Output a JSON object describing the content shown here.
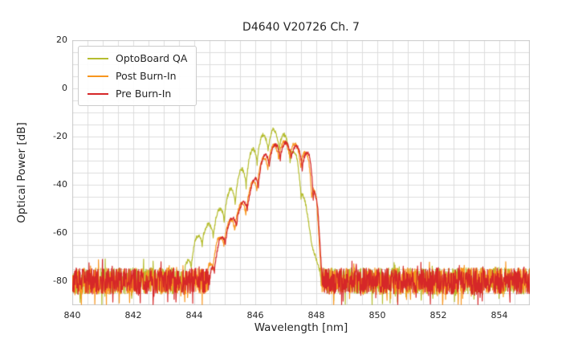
{
  "chart_data": {
    "type": "line",
    "title": "D4640 V20726 Ch. 7",
    "xlabel": "Wavelength [nm]",
    "ylabel": "Optical Power [dB]",
    "xlim": [
      840,
      855
    ],
    "ylim": [
      -90,
      20
    ],
    "x_ticks": [
      840,
      842,
      844,
      846,
      848,
      850,
      852,
      854
    ],
    "y_ticks": [
      20,
      0,
      -20,
      -40,
      -60,
      -80
    ],
    "grid": true,
    "minor_grid_step_x": 0.5,
    "minor_grid_step_y": 5,
    "grid_color": "#dcdcdc",
    "legend_position": "upper left",
    "noise_floor_db": -80,
    "series": [
      {
        "name": "OptoBoard QA",
        "color": "#b5bd2f",
        "noise_floor": {
          "mean": -80,
          "spread": 5.5,
          "seed": 11
        },
        "signal_range": [
          843.7,
          848.15
        ],
        "mode_spacing": 0.36,
        "mode_phase": 846.6,
        "peak_sharpness": 0.7,
        "envelope_top": [
          [
            843.7,
            -74
          ],
          [
            844.0,
            -63
          ],
          [
            844.3,
            -58
          ],
          [
            844.6,
            -55
          ],
          [
            844.95,
            -47
          ],
          [
            845.3,
            -39
          ],
          [
            845.65,
            -31
          ],
          [
            846.0,
            -23
          ],
          [
            846.3,
            -18.5
          ],
          [
            846.6,
            -17
          ],
          [
            846.9,
            -18.5
          ],
          [
            847.15,
            -22
          ],
          [
            847.4,
            -30
          ],
          [
            847.65,
            -48
          ],
          [
            847.9,
            -66
          ],
          [
            848.15,
            -78
          ]
        ],
        "envelope_bottom": [
          [
            843.7,
            -80
          ],
          [
            844.3,
            -64
          ],
          [
            844.7,
            -61
          ],
          [
            845.0,
            -55
          ],
          [
            845.35,
            -48
          ],
          [
            845.7,
            -41
          ],
          [
            846.05,
            -32
          ],
          [
            846.35,
            -27
          ],
          [
            846.65,
            -25
          ],
          [
            846.95,
            -27
          ],
          [
            847.2,
            -32
          ],
          [
            847.45,
            -42
          ],
          [
            847.7,
            -58
          ],
          [
            848.15,
            -80
          ]
        ]
      },
      {
        "name": "Post Burn-In",
        "color": "#f8961e",
        "noise_floor": {
          "mean": -80,
          "spread": 5.5,
          "seed": 23
        },
        "signal_range": [
          844.45,
          848.15
        ],
        "mode_spacing": 0.36,
        "mode_phase": 846.95,
        "peak_sharpness": 0.7,
        "envelope_top": [
          [
            844.45,
            -74
          ],
          [
            844.75,
            -63
          ],
          [
            845.05,
            -57
          ],
          [
            845.35,
            -51
          ],
          [
            845.7,
            -45
          ],
          [
            846.05,
            -34
          ],
          [
            846.35,
            -26.5
          ],
          [
            846.65,
            -23
          ],
          [
            846.95,
            -22
          ],
          [
            847.25,
            -22.5
          ],
          [
            847.55,
            -25
          ],
          [
            847.8,
            -29
          ],
          [
            848.0,
            -45
          ],
          [
            848.15,
            -72
          ]
        ],
        "envelope_bottom": [
          [
            844.45,
            -80
          ],
          [
            844.95,
            -66
          ],
          [
            845.35,
            -59
          ],
          [
            845.75,
            -51
          ],
          [
            846.1,
            -41
          ],
          [
            846.45,
            -33
          ],
          [
            846.75,
            -30
          ],
          [
            847.05,
            -29
          ],
          [
            847.35,
            -31
          ],
          [
            847.65,
            -36
          ],
          [
            847.9,
            -48
          ],
          [
            848.15,
            -80
          ]
        ]
      },
      {
        "name": "Pre Burn-In",
        "color": "#d62728",
        "noise_floor": {
          "mean": -80,
          "spread": 5.5,
          "seed": 37
        },
        "signal_range": [
          844.55,
          848.18
        ],
        "mode_spacing": 0.36,
        "mode_phase": 847.0,
        "peak_sharpness": 0.7,
        "envelope_top": [
          [
            844.55,
            -74
          ],
          [
            844.85,
            -62
          ],
          [
            845.15,
            -55
          ],
          [
            845.45,
            -50
          ],
          [
            845.8,
            -43
          ],
          [
            846.1,
            -32
          ],
          [
            846.4,
            -25.5
          ],
          [
            846.7,
            -23
          ],
          [
            847.0,
            -22.5
          ],
          [
            847.3,
            -23.5
          ],
          [
            847.6,
            -25.5
          ],
          [
            847.88,
            -28
          ],
          [
            848.05,
            -50
          ],
          [
            848.18,
            -76
          ]
        ],
        "envelope_bottom": [
          [
            844.55,
            -80
          ],
          [
            845.05,
            -64
          ],
          [
            845.45,
            -56
          ],
          [
            845.85,
            -48
          ],
          [
            846.2,
            -38
          ],
          [
            846.55,
            -31
          ],
          [
            846.85,
            -29.5
          ],
          [
            847.15,
            -29
          ],
          [
            847.45,
            -32
          ],
          [
            847.72,
            -37
          ],
          [
            847.95,
            -50
          ],
          [
            848.18,
            -80
          ]
        ]
      }
    ]
  }
}
